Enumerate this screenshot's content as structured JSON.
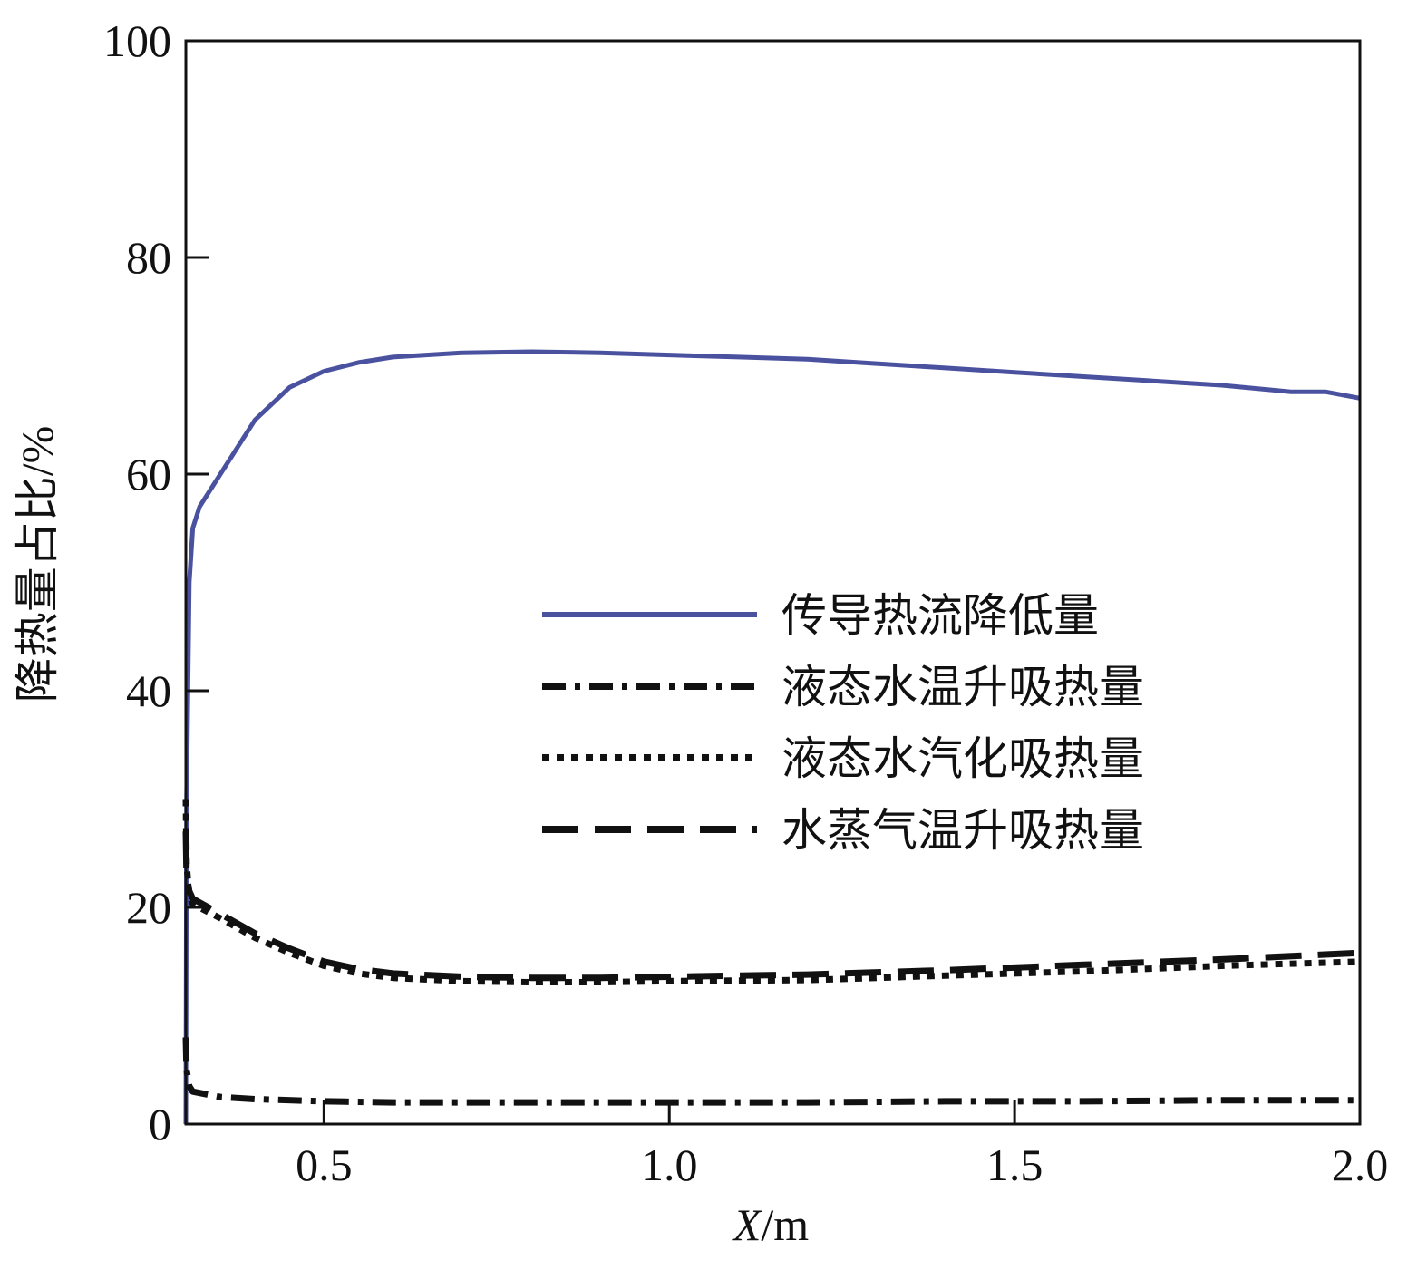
{
  "chart_data": {
    "type": "line",
    "title": "",
    "xlabel_italic": "X",
    "xlabel_unit": "/m",
    "ylabel": "降热量占比/%",
    "xlim": [
      0.3,
      2.0
    ],
    "ylim": [
      0,
      100
    ],
    "x_ticks": [
      "0.5",
      "1.0",
      "1.5",
      "2.0"
    ],
    "y_ticks": [
      "0",
      "20",
      "40",
      "60",
      "80",
      "100"
    ],
    "legend_position": "center-right",
    "series": [
      {
        "name": "传导热流降低量",
        "color": "#4a52a0",
        "style": "solid",
        "x": [
          0.3,
          0.301,
          0.305,
          0.31,
          0.32,
          0.35,
          0.4,
          0.45,
          0.5,
          0.55,
          0.6,
          0.7,
          0.8,
          0.9,
          1.0,
          1.1,
          1.2,
          1.3,
          1.4,
          1.5,
          1.6,
          1.7,
          1.8,
          1.9,
          1.95,
          2.0
        ],
        "y": [
          0,
          30,
          50,
          55,
          57,
          60,
          65,
          68,
          69.5,
          70.3,
          70.8,
          71.2,
          71.3,
          71.2,
          71.0,
          70.8,
          70.6,
          70.2,
          69.8,
          69.4,
          69.0,
          68.6,
          68.2,
          67.6,
          67.6,
          67.0
        ]
      },
      {
        "name": "液态水温升吸热量",
        "color": "#111111",
        "style": "dashdot",
        "x": [
          0.3,
          0.301,
          0.305,
          0.31,
          0.35,
          0.4,
          0.5,
          0.6,
          0.8,
          1.0,
          1.2,
          1.4,
          1.6,
          1.8,
          2.0
        ],
        "y": [
          8,
          5,
          3.5,
          3.0,
          2.5,
          2.3,
          2.1,
          2.0,
          2.0,
          2.0,
          2.0,
          2.1,
          2.1,
          2.2,
          2.2
        ]
      },
      {
        "name": "液态水汽化吸热量",
        "color": "#111111",
        "style": "dotted",
        "x": [
          0.3,
          0.301,
          0.305,
          0.31,
          0.35,
          0.4,
          0.45,
          0.5,
          0.55,
          0.6,
          0.7,
          0.8,
          0.9,
          1.0,
          1.2,
          1.4,
          1.6,
          1.8,
          2.0
        ],
        "y": [
          30,
          24,
          21,
          20.3,
          19.0,
          17.2,
          15.8,
          14.6,
          13.9,
          13.5,
          13.2,
          13.1,
          13.1,
          13.2,
          13.3,
          13.7,
          14.1,
          14.6,
          15.0
        ]
      },
      {
        "name": "水蒸气温升吸热量",
        "color": "#111111",
        "style": "dashed",
        "x": [
          0.3,
          0.301,
          0.305,
          0.31,
          0.35,
          0.4,
          0.45,
          0.5,
          0.55,
          0.6,
          0.7,
          0.8,
          0.9,
          1.0,
          1.2,
          1.4,
          1.6,
          1.8,
          2.0
        ],
        "y": [
          27,
          23,
          21.5,
          20.8,
          19.4,
          17.6,
          16.2,
          15.0,
          14.3,
          13.9,
          13.6,
          13.5,
          13.5,
          13.6,
          13.8,
          14.2,
          14.7,
          15.2,
          15.8
        ]
      }
    ]
  }
}
